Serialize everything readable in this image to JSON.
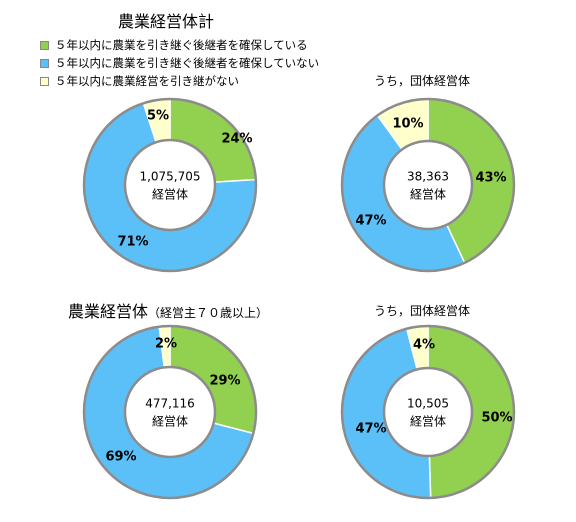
{
  "legend": [
    {
      "label": "５年以内に農業を引き継ぐ後継者を確保している",
      "color": "#92d050"
    },
    {
      "label": "５年以内に農業を引き継ぐ後継者を確保していない",
      "color": "#5bc0f8"
    },
    {
      "label": "５年以内に農業経営を引き継がない",
      "color": "#ffffcc"
    }
  ],
  "headings": {
    "total": "農業経営体計",
    "group_top": "うち，団体経営体",
    "over70_main": "農業経営体",
    "over70_sub": "（経営主７０歳以上）",
    "group_bottom": "うち，団体経営体"
  },
  "colors": {
    "border": "#8c8c8c",
    "hole": "#ffffff"
  },
  "chart_data": [
    {
      "type": "pie",
      "center_value": "1,075,705",
      "center_unit": "経営体",
      "categories": [
        "確保している",
        "確保していない",
        "引き継がない"
      ],
      "values": [
        24,
        71,
        5
      ],
      "labels": [
        "24%",
        "71%",
        "5%"
      ]
    },
    {
      "type": "pie",
      "center_value": "38,363",
      "center_unit": "経営体",
      "categories": [
        "確保している",
        "確保していない",
        "引き継がない"
      ],
      "values": [
        43,
        47,
        10
      ],
      "labels": [
        "43%",
        "47%",
        "10%"
      ]
    },
    {
      "type": "pie",
      "center_value": "477,116",
      "center_unit": "経営体",
      "categories": [
        "確保している",
        "確保していない",
        "引き継がない"
      ],
      "values": [
        29,
        69,
        2
      ],
      "labels": [
        "29%",
        "69%",
        "2%"
      ]
    },
    {
      "type": "pie",
      "center_value": "10,505",
      "center_unit": "経営体",
      "categories": [
        "確保している",
        "確保していない",
        "引き継がない"
      ],
      "values": [
        50,
        47,
        4
      ],
      "labels": [
        "50%",
        "47%",
        "4%"
      ]
    }
  ]
}
